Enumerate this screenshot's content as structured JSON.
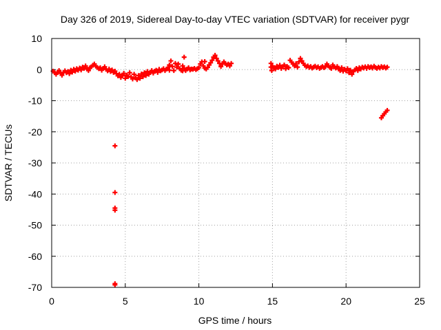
{
  "chart_data": {
    "type": "scatter",
    "title": "Day 326 of 2019, Sidereal Day-to-day VTEC variation (SDTVAR) for receiver pygr",
    "xlabel": "GPS time / hours",
    "ylabel": "SDTVAR / TECUs",
    "xlim": [
      0,
      25
    ],
    "ylim": [
      -70,
      10
    ],
    "xticks": [
      0,
      5,
      10,
      15,
      20,
      25
    ],
    "yticks": [
      10,
      0,
      -10,
      -20,
      -30,
      -40,
      -50,
      -60,
      -70
    ],
    "grid": true,
    "marker_color": "#ff0000",
    "series": [
      {
        "name": "SDTVAR",
        "points": [
          [
            0.1,
            -0.5
          ],
          [
            0.2,
            -1.0
          ],
          [
            0.3,
            -1.5
          ],
          [
            0.4,
            -0.8
          ],
          [
            0.5,
            -0.3
          ],
          [
            0.6,
            -1.2
          ],
          [
            0.7,
            -1.8
          ],
          [
            0.8,
            -0.9
          ],
          [
            0.9,
            -0.4
          ],
          [
            1.0,
            -1.0
          ],
          [
            1.1,
            -0.6
          ],
          [
            1.2,
            -1.3
          ],
          [
            1.3,
            -0.2
          ],
          [
            1.4,
            -0.8
          ],
          [
            1.5,
            0.1
          ],
          [
            1.6,
            -0.5
          ],
          [
            1.7,
            0.3
          ],
          [
            1.8,
            -0.2
          ],
          [
            1.9,
            0.5
          ],
          [
            2.0,
            -0.1
          ],
          [
            2.1,
            0.8
          ],
          [
            2.2,
            0.4
          ],
          [
            2.3,
            1.2
          ],
          [
            2.4,
            0.2
          ],
          [
            2.5,
            -0.3
          ],
          [
            2.6,
            0.6
          ],
          [
            2.7,
            0.9
          ],
          [
            2.8,
            1.4
          ],
          [
            2.9,
            1.8
          ],
          [
            3.0,
            1.1
          ],
          [
            3.1,
            0.7
          ],
          [
            3.2,
            0.3
          ],
          [
            3.3,
            0.6
          ],
          [
            3.4,
            -0.2
          ],
          [
            3.5,
            0.4
          ],
          [
            3.6,
            0.9
          ],
          [
            3.7,
            0.1
          ],
          [
            3.8,
            -0.4
          ],
          [
            3.9,
            0.2
          ],
          [
            4.0,
            -0.6
          ],
          [
            4.1,
            -0.1
          ],
          [
            4.2,
            -0.9
          ],
          [
            4.3,
            -0.5
          ],
          [
            4.4,
            -1.3
          ],
          [
            4.5,
            -2.0
          ],
          [
            4.6,
            -1.5
          ],
          [
            4.7,
            -2.5
          ],
          [
            4.8,
            -2.0
          ],
          [
            4.9,
            -1.2
          ],
          [
            5.0,
            -2.8
          ],
          [
            5.1,
            -1.8
          ],
          [
            5.2,
            -2.2
          ],
          [
            5.3,
            -1.0
          ],
          [
            5.4,
            -2.4
          ],
          [
            5.5,
            -3.0
          ],
          [
            5.6,
            -1.5
          ],
          [
            5.7,
            -2.6
          ],
          [
            5.8,
            -3.2
          ],
          [
            5.9,
            -1.9
          ],
          [
            6.0,
            -2.8
          ],
          [
            6.1,
            -1.4
          ],
          [
            6.2,
            -2.3
          ],
          [
            6.3,
            -1.0
          ],
          [
            6.4,
            -1.9
          ],
          [
            6.5,
            -0.6
          ],
          [
            6.6,
            -1.5
          ],
          [
            6.7,
            -0.9
          ],
          [
            6.8,
            -0.3
          ],
          [
            6.9,
            -1.1
          ],
          [
            7.0,
            -0.5
          ],
          [
            7.1,
            -0.2
          ],
          [
            7.2,
            -0.9
          ],
          [
            7.3,
            0.1
          ],
          [
            7.4,
            -0.4
          ],
          [
            7.5,
            -0.1
          ],
          [
            7.6,
            0.3
          ],
          [
            7.7,
            -0.3
          ],
          [
            7.8,
            0.2
          ],
          [
            7.9,
            0.6
          ],
          [
            8.0,
            -0.2
          ],
          [
            8.0,
            1.5
          ],
          [
            8.1,
            2.8
          ],
          [
            8.2,
            1.0
          ],
          [
            8.3,
            -0.3
          ],
          [
            8.4,
            2.0
          ],
          [
            8.5,
            0.8
          ],
          [
            8.6,
            1.8
          ],
          [
            8.7,
            0.3
          ],
          [
            8.8,
            -0.2
          ],
          [
            8.9,
            1.2
          ],
          [
            9.0,
            0.5
          ],
          [
            9.1,
            -0.3
          ],
          [
            9.2,
            0.2
          ],
          [
            9.3,
            0.6
          ],
          [
            9.4,
            -0.1
          ],
          [
            9.5,
            0.2
          ],
          [
            9.6,
            0.1
          ],
          [
            9.7,
            0.4
          ],
          [
            9.8,
            0.0
          ],
          [
            9.9,
            0.3
          ],
          [
            10.0,
            0.6
          ],
          [
            10.1,
            1.8
          ],
          [
            10.2,
            2.5
          ],
          [
            10.3,
            1.2
          ],
          [
            10.4,
            0.5
          ],
          [
            10.5,
            0.2
          ],
          [
            10.6,
            0.7
          ],
          [
            10.7,
            1.5
          ],
          [
            10.8,
            2.2
          ],
          [
            10.9,
            3.0
          ],
          [
            11.0,
            4.0
          ],
          [
            11.1,
            4.6
          ],
          [
            11.2,
            3.6
          ],
          [
            11.3,
            2.8
          ],
          [
            11.4,
            2.0
          ],
          [
            11.5,
            1.0
          ],
          [
            11.6,
            1.8
          ],
          [
            11.7,
            2.5
          ],
          [
            11.8,
            2.0
          ],
          [
            11.9,
            1.5
          ],
          [
            12.0,
            1.8
          ],
          [
            12.1,
            1.2
          ],
          [
            12.2,
            2.0
          ],
          [
            9.0,
            4.0
          ],
          [
            8.9,
            -0.4
          ],
          [
            10.4,
            2.6
          ],
          [
            4.3,
            -24.5
          ],
          [
            4.3,
            -39.5
          ],
          [
            4.3,
            -44.5
          ],
          [
            4.3,
            -45.2
          ],
          [
            4.3,
            -68.8
          ],
          [
            4.3,
            -69.2
          ],
          [
            14.9,
            2.0
          ],
          [
            14.9,
            0.8
          ],
          [
            14.95,
            -0.3
          ],
          [
            15.0,
            1.2
          ],
          [
            15.1,
            0.5
          ],
          [
            15.2,
            0.2
          ],
          [
            15.3,
            1.1
          ],
          [
            15.4,
            0.7
          ],
          [
            15.5,
            1.4
          ],
          [
            15.6,
            0.4
          ],
          [
            15.7,
            0.9
          ],
          [
            15.8,
            1.5
          ],
          [
            15.9,
            0.3
          ],
          [
            16.0,
            1.0
          ],
          [
            16.1,
            0.6
          ],
          [
            16.2,
            3.0
          ],
          [
            16.3,
            2.4
          ],
          [
            16.4,
            1.8
          ],
          [
            16.5,
            1.2
          ],
          [
            16.6,
            1.9
          ],
          [
            16.7,
            0.8
          ],
          [
            16.8,
            2.5
          ],
          [
            16.9,
            3.6
          ],
          [
            17.0,
            2.8
          ],
          [
            17.1,
            2.0
          ],
          [
            17.2,
            1.4
          ],
          [
            17.3,
            0.9
          ],
          [
            17.4,
            1.2
          ],
          [
            17.5,
            0.7
          ],
          [
            17.6,
            1.0
          ],
          [
            17.7,
            0.5
          ],
          [
            17.8,
            0.8
          ],
          [
            17.9,
            1.1
          ],
          [
            18.0,
            0.6
          ],
          [
            18.1,
            0.9
          ],
          [
            18.2,
            0.4
          ],
          [
            18.3,
            0.7
          ],
          [
            18.4,
            1.0
          ],
          [
            18.5,
            0.6
          ],
          [
            18.6,
            0.9
          ],
          [
            18.7,
            1.8
          ],
          [
            18.8,
            1.2
          ],
          [
            18.9,
            0.7
          ],
          [
            19.0,
            0.4
          ],
          [
            19.1,
            1.5
          ],
          [
            19.2,
            0.9
          ],
          [
            19.3,
            0.5
          ],
          [
            19.4,
            1.0
          ],
          [
            19.5,
            0.2
          ],
          [
            19.6,
            -0.3
          ],
          [
            19.7,
            0.6
          ],
          [
            19.8,
            -0.5
          ],
          [
            19.9,
            0.1
          ],
          [
            20.0,
            -0.4
          ],
          [
            20.1,
            0.3
          ],
          [
            20.2,
            -1.0
          ],
          [
            20.3,
            -0.2
          ],
          [
            20.4,
            -1.5
          ],
          [
            20.5,
            -0.6
          ],
          [
            20.6,
            -0.1
          ],
          [
            20.7,
            0.4
          ],
          [
            20.8,
            -0.3
          ],
          [
            20.9,
            0.6
          ],
          [
            21.0,
            0.2
          ],
          [
            21.1,
            0.8
          ],
          [
            21.2,
            0.5
          ],
          [
            21.3,
            0.9
          ],
          [
            21.4,
            0.4
          ],
          [
            21.5,
            1.0
          ],
          [
            21.6,
            0.6
          ],
          [
            21.7,
            0.9
          ],
          [
            21.8,
            0.5
          ],
          [
            21.9,
            1.1
          ],
          [
            22.0,
            0.7
          ],
          [
            22.1,
            0.4
          ],
          [
            22.2,
            0.8
          ],
          [
            22.3,
            0.5
          ],
          [
            22.4,
            1.0
          ],
          [
            22.5,
            0.6
          ],
          [
            22.6,
            0.9
          ],
          [
            22.7,
            0.5
          ],
          [
            22.8,
            0.8
          ],
          [
            22.4,
            -15.5
          ],
          [
            22.5,
            -14.8
          ],
          [
            22.6,
            -14.2
          ],
          [
            22.7,
            -13.6
          ],
          [
            22.8,
            -13.1
          ]
        ]
      }
    ]
  }
}
